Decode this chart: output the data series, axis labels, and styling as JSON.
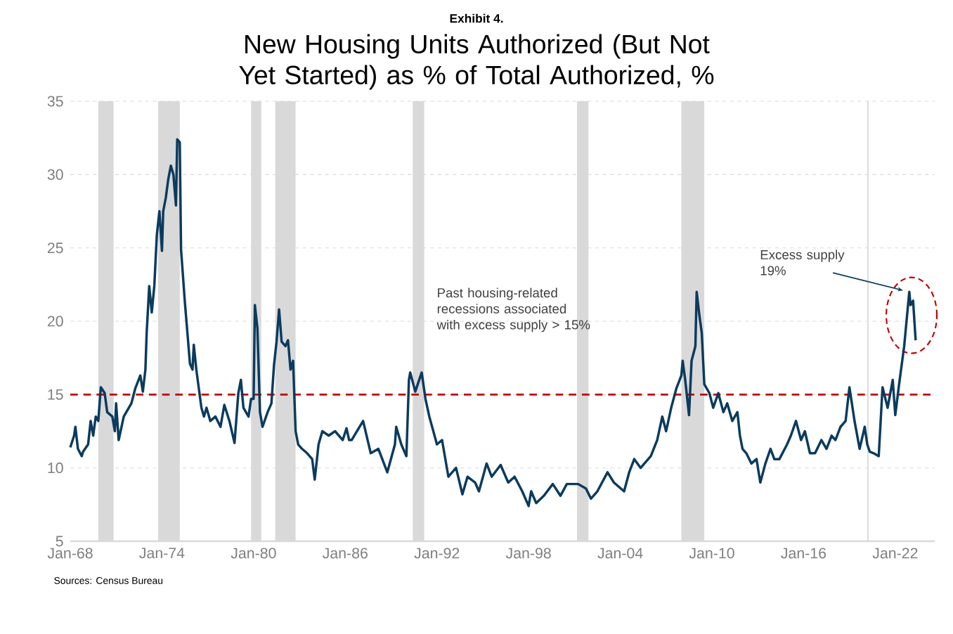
{
  "chart_data": {
    "type": "line",
    "subtitle": "Exhibit 4.",
    "title": "New Housing Units Authorized (But Not Yet Started) as % of Total Authorized, %",
    "x": [
      "1968-01",
      "1968-04",
      "1968-05",
      "1968-07",
      "1968-10",
      "1968-11",
      "1969-03",
      "1969-05",
      "1969-07",
      "1969-09",
      "1969-11",
      "1970-01",
      "1970-04",
      "1970-06",
      "1970-10",
      "1970-12",
      "1971-01",
      "1971-03",
      "1971-07",
      "1971-11",
      "1972-01",
      "1972-04",
      "1972-08",
      "1972-10",
      "1972-12",
      "1973-01",
      "1973-03",
      "1973-05",
      "1973-07",
      "1973-09",
      "1973-11",
      "1974-01",
      "1974-02",
      "1974-04",
      "1974-06",
      "1974-08",
      "1974-10",
      "1974-12",
      "1975-01",
      "1975-03",
      "1975-04",
      "1975-07",
      "1975-09",
      "1975-11",
      "1976-01",
      "1976-02",
      "1976-04",
      "1976-08",
      "1976-10",
      "1976-12",
      "1977-03",
      "1977-07",
      "1977-11",
      "1978-02",
      "1978-06",
      "1978-10",
      "1979-01",
      "1979-03",
      "1979-05",
      "1979-09",
      "1979-11",
      "1980-01",
      "1980-02",
      "1980-04",
      "1980-06",
      "1980-08",
      "1980-12",
      "1981-03",
      "1981-05",
      "1981-07",
      "1981-09",
      "1981-11",
      "1982-02",
      "1982-04",
      "1982-06",
      "1982-08",
      "1982-10",
      "1982-12",
      "1983-03",
      "1983-07",
      "1983-11",
      "1984-01",
      "1984-04",
      "1984-07",
      "1984-12",
      "1985-05",
      "1985-11",
      "1986-02",
      "1986-04",
      "1986-06",
      "1987-03",
      "1987-09",
      "1988-03",
      "1988-10",
      "1989-04",
      "1989-05",
      "1989-09",
      "1990-01",
      "1990-03",
      "1990-04",
      "1990-08",
      "1991-01",
      "1991-04",
      "1991-07",
      "1992-01",
      "1992-05",
      "1992-10",
      "1993-04",
      "1993-09",
      "1994-01",
      "1994-07",
      "1994-10",
      "1995-04",
      "1995-08",
      "1996-03",
      "1996-09",
      "1997-02",
      "1997-08",
      "1998-01",
      "1998-03",
      "1998-07",
      "1999-01",
      "1999-08",
      "2000-02",
      "2000-07",
      "2001-04",
      "2001-10",
      "2002-02",
      "2002-07",
      "2003-03",
      "2003-08",
      "2004-04",
      "2004-08",
      "2004-12",
      "2005-05",
      "2006-01",
      "2006-06",
      "2006-10",
      "2007-01",
      "2007-05",
      "2007-09",
      "2008-01",
      "2008-02",
      "2008-04",
      "2008-07",
      "2008-09",
      "2008-12",
      "2009-01",
      "2009-03",
      "2009-05",
      "2009-07",
      "2009-11",
      "2010-02",
      "2010-06",
      "2010-10",
      "2011-01",
      "2011-05",
      "2011-09",
      "2011-11",
      "2012-01",
      "2012-04",
      "2012-08",
      "2012-12",
      "2013-03",
      "2013-07",
      "2013-11",
      "2014-02",
      "2014-06",
      "2014-12",
      "2015-03",
      "2015-07",
      "2015-11",
      "2016-02",
      "2016-06",
      "2016-10",
      "2017-03",
      "2017-07",
      "2017-11",
      "2018-02",
      "2018-06",
      "2018-10",
      "2019-01",
      "2019-05",
      "2019-09",
      "2020-01",
      "2020-03",
      "2020-05",
      "2020-08",
      "2020-12",
      "2021-03",
      "2021-07",
      "2021-11",
      "2022-01",
      "2022-04",
      "2022-08",
      "2022-12",
      "2023-01",
      "2023-03",
      "2023-05"
    ],
    "series": [
      {
        "color": "#0b3b5e",
        "values": [
          11.4,
          12.2,
          12.8,
          11.3,
          10.8,
          11.1,
          11.6,
          13.2,
          12.2,
          13.5,
          13.2,
          15.5,
          15.1,
          13.8,
          13.5,
          12.5,
          14.4,
          11.9,
          13.5,
          14.1,
          14.4,
          15.4,
          16.3,
          15.2,
          16.7,
          19.2,
          22.4,
          20.6,
          22.4,
          25.9,
          27.5,
          24.8,
          27.5,
          28.4,
          29.7,
          30.6,
          30.0,
          27.9,
          32.4,
          32.2,
          24.9,
          21.3,
          19.2,
          17.1,
          16.7,
          18.4,
          16.7,
          14.1,
          13.5,
          14.1,
          13.2,
          13.5,
          12.8,
          14.3,
          13.2,
          11.7,
          15.1,
          16.0,
          14.1,
          13.5,
          14.7,
          14.7,
          21.1,
          19.5,
          13.8,
          12.8,
          13.8,
          14.4,
          17.0,
          18.6,
          20.8,
          18.6,
          18.3,
          18.7,
          16.7,
          17.3,
          12.5,
          11.6,
          11.3,
          11.0,
          10.6,
          9.2,
          11.6,
          12.5,
          12.2,
          12.5,
          11.9,
          12.7,
          11.9,
          11.9,
          13.2,
          11.0,
          11.3,
          9.7,
          11.6,
          12.8,
          11.6,
          10.8,
          16.0,
          16.5,
          15.2,
          16.5,
          14.7,
          13.5,
          11.6,
          11.9,
          9.4,
          10.0,
          8.2,
          9.4,
          9.0,
          8.4,
          10.3,
          9.4,
          10.2,
          9.0,
          9.4,
          8.4,
          7.4,
          8.4,
          7.6,
          8.1,
          8.9,
          8.1,
          8.9,
          8.9,
          8.6,
          7.9,
          8.4,
          9.7,
          9.0,
          8.4,
          9.7,
          10.6,
          10.0,
          10.8,
          11.9,
          13.5,
          12.5,
          14.1,
          15.4,
          16.3,
          17.3,
          16.0,
          13.6,
          17.3,
          18.3,
          22.0,
          20.5,
          19.2,
          15.7,
          15.1,
          14.1,
          15.1,
          13.8,
          14.4,
          13.2,
          13.8,
          12.2,
          11.3,
          11.0,
          10.3,
          10.6,
          9.0,
          10.3,
          11.3,
          10.6,
          10.6,
          11.6,
          12.2,
          13.2,
          11.9,
          12.5,
          11.0,
          11.0,
          11.9,
          11.3,
          12.2,
          11.9,
          12.8,
          13.2,
          15.5,
          13.2,
          11.3,
          12.8,
          11.6,
          11.1,
          11.0,
          10.8,
          15.5,
          14.1,
          16.0,
          13.6,
          15.7,
          18.3,
          22.0,
          21.1,
          21.4,
          18.7
        ]
      }
    ],
    "xlim": [
      "1968-01",
      "2024-08"
    ],
    "xticks": [
      {
        "value": "1968-01",
        "label": "Jan-68"
      },
      {
        "value": "1974-01",
        "label": "Jan-74"
      },
      {
        "value": "1980-01",
        "label": "Jan-80"
      },
      {
        "value": "1986-01",
        "label": "Jan-86"
      },
      {
        "value": "1992-01",
        "label": "Jan-92"
      },
      {
        "value": "1998-01",
        "label": "Jan-98"
      },
      {
        "value": "2004-01",
        "label": "Jan-04"
      },
      {
        "value": "2010-01",
        "label": "Jan-10"
      },
      {
        "value": "2016-01",
        "label": "Jan-16"
      },
      {
        "value": "2022-01",
        "label": "Jan-22"
      }
    ],
    "ylim": [
      5,
      35
    ],
    "yticks": [
      5,
      10,
      15,
      20,
      25,
      30,
      35
    ],
    "grid": "y",
    "marker": "none",
    "line_style": "solid",
    "ref_lines": [
      {
        "axis": "y",
        "value": 15,
        "color": "#c00000",
        "line_style": "dashed"
      }
    ],
    "bands": [
      {
        "axis": "x",
        "from": "1969-11",
        "to": "1970-11",
        "color": "#d9d9d9"
      },
      {
        "axis": "x",
        "from": "1973-10",
        "to": "1975-03",
        "color": "#d9d9d9"
      },
      {
        "axis": "x",
        "from": "1979-11",
        "to": "1980-07",
        "color": "#d9d9d9"
      },
      {
        "axis": "x",
        "from": "1981-06",
        "to": "1982-10",
        "color": "#d9d9d9"
      },
      {
        "axis": "x",
        "from": "1990-06",
        "to": "1991-03",
        "color": "#d9d9d9"
      },
      {
        "axis": "x",
        "from": "2001-03",
        "to": "2001-12",
        "color": "#d9d9d9"
      },
      {
        "axis": "x",
        "from": "2008-01",
        "to": "2009-07",
        "color": "#d9d9d9"
      },
      {
        "axis": "x",
        "from": "2020-03",
        "to": "2020-04",
        "color": "#d9d9d9"
      }
    ],
    "annotations": [
      "Past housing-related recessions associated with excess supply > 15%",
      {
        "text": "Excess supply 19%",
        "x": "2022-12",
        "y": 22.0
      },
      "Sources: Census Bureau"
    ]
  }
}
